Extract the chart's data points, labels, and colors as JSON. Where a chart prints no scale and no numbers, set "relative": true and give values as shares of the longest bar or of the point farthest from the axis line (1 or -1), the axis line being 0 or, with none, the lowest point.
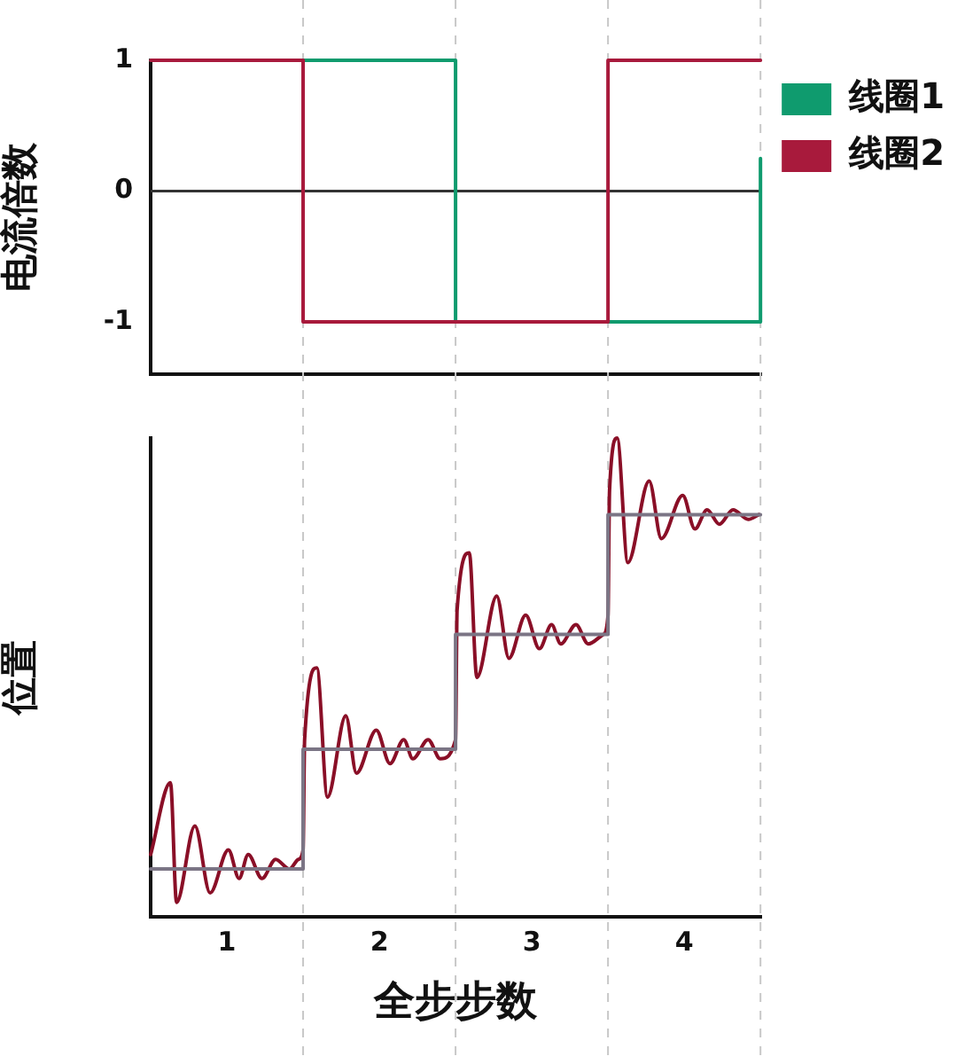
{
  "chart_data": [
    {
      "type": "step",
      "ylabel": "电流倍数",
      "xlim": [
        0,
        4
      ],
      "ylim": [
        -1.4,
        1
      ],
      "yticks": [
        1,
        0,
        -1
      ],
      "tick_labels": "y",
      "legend": "top right",
      "ref_lines": [
        {
          "axis": "y",
          "value": 0,
          "color": "#333333"
        },
        {
          "axis": "x",
          "value": 1,
          "color": "#c8c8c8",
          "line_style": "dashed"
        },
        {
          "axis": "x",
          "value": 2,
          "color": "#c8c8c8",
          "line_style": "dashed"
        },
        {
          "axis": "x",
          "value": 3,
          "color": "#c8c8c8",
          "line_style": "dashed"
        },
        {
          "axis": "x",
          "value": 4,
          "color": "#c8c8c8",
          "line_style": "dashed"
        }
      ],
      "series": [
        {
          "name": "线圈1",
          "color": "#0f9b6e",
          "x": [
            0,
            2,
            4
          ],
          "values": [
            1,
            -1,
            0.25
          ]
        },
        {
          "name": "线圈2",
          "color": "#a81a3c",
          "x": [
            0,
            1,
            3,
            4
          ],
          "values": [
            1,
            -1,
            1,
            1
          ]
        }
      ]
    },
    {
      "type": "line",
      "ylabel": "位置",
      "xlabel": "全步步数",
      "relative": true,
      "xlim": [
        0,
        4
      ],
      "xticks": [
        {
          "value": 0.5,
          "label": "1"
        },
        {
          "value": 1.5,
          "label": "2"
        },
        {
          "value": 2.5,
          "label": "3"
        },
        {
          "value": 3.5,
          "label": "4"
        }
      ],
      "ref_lines": [
        {
          "axis": "x",
          "value": 1,
          "color": "#c8c8c8",
          "line_style": "dashed"
        },
        {
          "axis": "x",
          "value": 2,
          "color": "#c8c8c8",
          "line_style": "dashed"
        },
        {
          "axis": "x",
          "value": 3,
          "color": "#c8c8c8",
          "line_style": "dashed"
        },
        {
          "axis": "x",
          "value": 4,
          "color": "#c8c8c8",
          "line_style": "dashed"
        }
      ],
      "series": [
        {
          "color": "#8a0f27",
          "x": [
            0,
            0.13,
            0.17,
            0.29,
            0.39,
            0.51,
            0.58,
            0.64,
            0.73,
            0.82,
            0.91,
            0.97,
            1.0,
            1.01,
            1.09,
            1.16,
            1.28,
            1.35,
            1.48,
            1.57,
            1.66,
            1.72,
            1.82,
            1.9,
            2.0,
            2.01,
            2.09,
            2.14,
            2.27,
            2.35,
            2.46,
            2.55,
            2.63,
            2.69,
            2.79,
            2.87,
            2.97,
            3.0,
            3.01,
            3.06,
            3.13,
            3.27,
            3.35,
            3.49,
            3.57,
            3.65,
            3.73,
            3.82,
            3.92,
            3.99
          ],
          "values": [
            0.13,
            0.28,
            0.03,
            0.19,
            0.05,
            0.14,
            0.08,
            0.13,
            0.08,
            0.12,
            0.1,
            0.12,
            0.14,
            0.37,
            0.52,
            0.25,
            0.42,
            0.3,
            0.39,
            0.32,
            0.37,
            0.33,
            0.37,
            0.33,
            0.37,
            0.64,
            0.76,
            0.5,
            0.67,
            0.54,
            0.63,
            0.56,
            0.61,
            0.57,
            0.61,
            0.57,
            0.59,
            0.63,
            0.89,
            1.0,
            0.74,
            0.91,
            0.79,
            0.88,
            0.81,
            0.85,
            0.82,
            0.85,
            0.83,
            0.84
          ]
        },
        {
          "type": "step",
          "color": "#7b7585",
          "x": [
            0,
            1,
            2,
            3,
            4
          ],
          "values": [
            0.1,
            0.35,
            0.59,
            0.84,
            0.84
          ]
        }
      ]
    }
  ]
}
